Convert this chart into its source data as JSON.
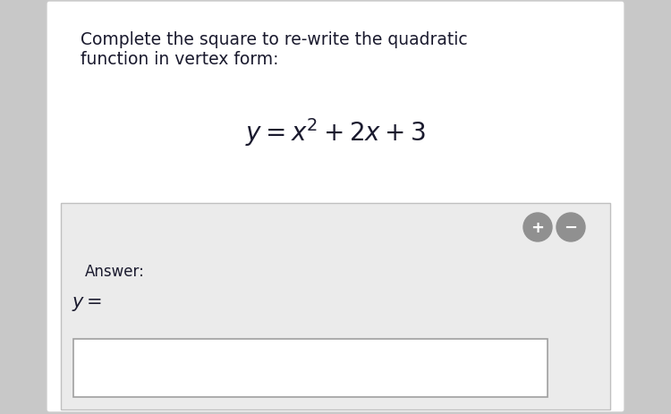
{
  "outer_bg": "#c8c8c8",
  "panel_bg": "#ffffff",
  "answer_box_bg": "#ebebeb",
  "answer_input_bg": "#ffffff",
  "title_line1": "Complete the square to re-write the quadratic",
  "title_line2": "function in vertex form:",
  "equation": "$y = x^2 + 2x + 3$",
  "answer_label": "Answer:",
  "answer_var": "$y =$",
  "title_fontsize": 13.5,
  "eq_fontsize": 20,
  "answer_fontsize": 12,
  "answer_var_fontsize": 15,
  "text_color": "#1a1a2e",
  "panel_border": "#cccccc",
  "answer_border": "#c0c0c0",
  "input_border": "#a0a0a0",
  "btn_color": "#909090",
  "btn_plus_color": "#909090",
  "btn_minus_color": "#909090"
}
